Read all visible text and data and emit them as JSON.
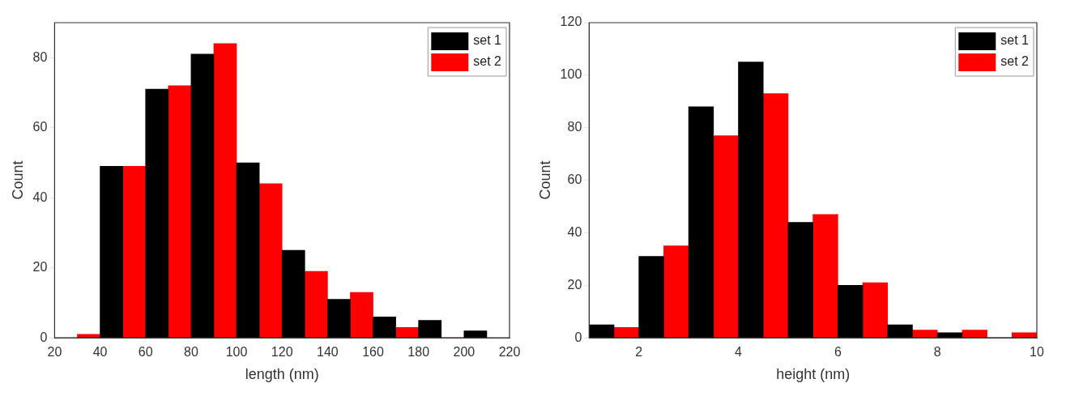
{
  "chart_data": [
    {
      "type": "histogram",
      "xlabel": "length (nm)",
      "ylabel": "Count",
      "bins": [
        30,
        40,
        50,
        60,
        70,
        80,
        90,
        100,
        110,
        120,
        130,
        140,
        150,
        160,
        170,
        180,
        190,
        200,
        210
      ],
      "series": [
        {
          "name": "set 1",
          "color": "#000000",
          "values": [
            null,
            49,
            null,
            71,
            null,
            81,
            null,
            50,
            null,
            25,
            null,
            11,
            null,
            6,
            null,
            5,
            null,
            2
          ]
        },
        {
          "name": "set 2",
          "color": "#ff0000",
          "values": [
            1,
            null,
            49,
            null,
            72,
            null,
            84,
            null,
            44,
            null,
            19,
            null,
            13,
            null,
            3,
            null,
            0,
            null
          ]
        }
      ],
      "xlim": [
        20,
        220
      ],
      "xticks": [
        20,
        40,
        60,
        80,
        100,
        120,
        140,
        160,
        180,
        200,
        220
      ],
      "ylim": [
        0,
        90
      ],
      "yticks": [
        0,
        20,
        40,
        60,
        80
      ],
      "legend": "top right"
    },
    {
      "type": "histogram",
      "xlabel": "height (nm)",
      "ylabel": "Count",
      "bins": [
        1,
        1.5,
        2,
        2.5,
        3,
        3.5,
        4,
        4.5,
        5,
        5.5,
        6,
        6.5,
        7,
        7.5,
        8,
        8.5,
        9,
        9.5,
        10
      ],
      "series": [
        {
          "name": "set 1",
          "color": "#000000",
          "values": [
            5,
            null,
            31,
            null,
            88,
            null,
            105,
            null,
            44,
            null,
            20,
            null,
            5,
            null,
            2,
            null,
            0,
            null
          ]
        },
        {
          "name": "set 2",
          "color": "#ff0000",
          "values": [
            null,
            4,
            null,
            35,
            null,
            77,
            null,
            93,
            null,
            47,
            null,
            21,
            null,
            3,
            null,
            3,
            null,
            2
          ]
        }
      ],
      "xlim": [
        1,
        10
      ],
      "xticks": [
        2,
        4,
        6,
        8,
        10
      ],
      "ylim": [
        0,
        120
      ],
      "yticks": [
        0,
        20,
        40,
        60,
        80,
        100,
        120
      ],
      "legend": "top right"
    }
  ]
}
